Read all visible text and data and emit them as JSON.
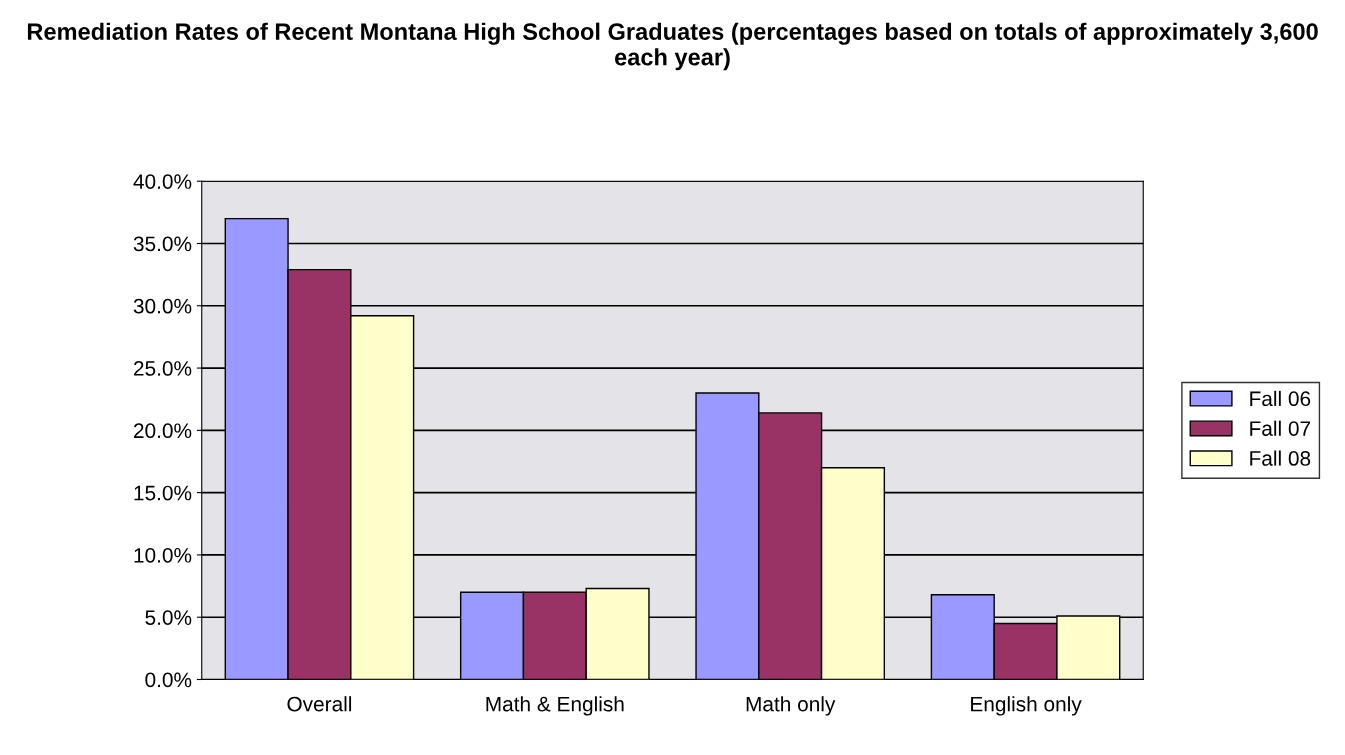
{
  "chart_data": {
    "type": "bar",
    "title": "Remediation Rates of Recent Montana High School Graduates (percentages based on totals of approximately 3,600 each year)",
    "categories": [
      "Overall",
      "Math & English",
      "Math only",
      "English only"
    ],
    "series": [
      {
        "name": "Fall 06",
        "color": "#9999ff",
        "values": [
          37.0,
          7.0,
          23.0,
          6.8
        ]
      },
      {
        "name": "Fall 07",
        "color": "#993366",
        "values": [
          32.9,
          7.0,
          21.4,
          4.5
        ]
      },
      {
        "name": "Fall 08",
        "color": "#ffffcc",
        "values": [
          29.2,
          7.3,
          17.0,
          5.1
        ]
      }
    ],
    "ylim": [
      0,
      40
    ],
    "yticks": [
      {
        "value": 0,
        "label": "0.0%"
      },
      {
        "value": 5,
        "label": "5.0%"
      },
      {
        "value": 10,
        "label": "10.0%"
      },
      {
        "value": 15,
        "label": "15.0%"
      },
      {
        "value": 20,
        "label": "20.0%"
      },
      {
        "value": 25,
        "label": "25.0%"
      },
      {
        "value": 30,
        "label": "30.0%"
      },
      {
        "value": 35,
        "label": "35.0%"
      },
      {
        "value": 40,
        "label": "40.0%"
      }
    ],
    "grid": "y",
    "legend": "right"
  }
}
